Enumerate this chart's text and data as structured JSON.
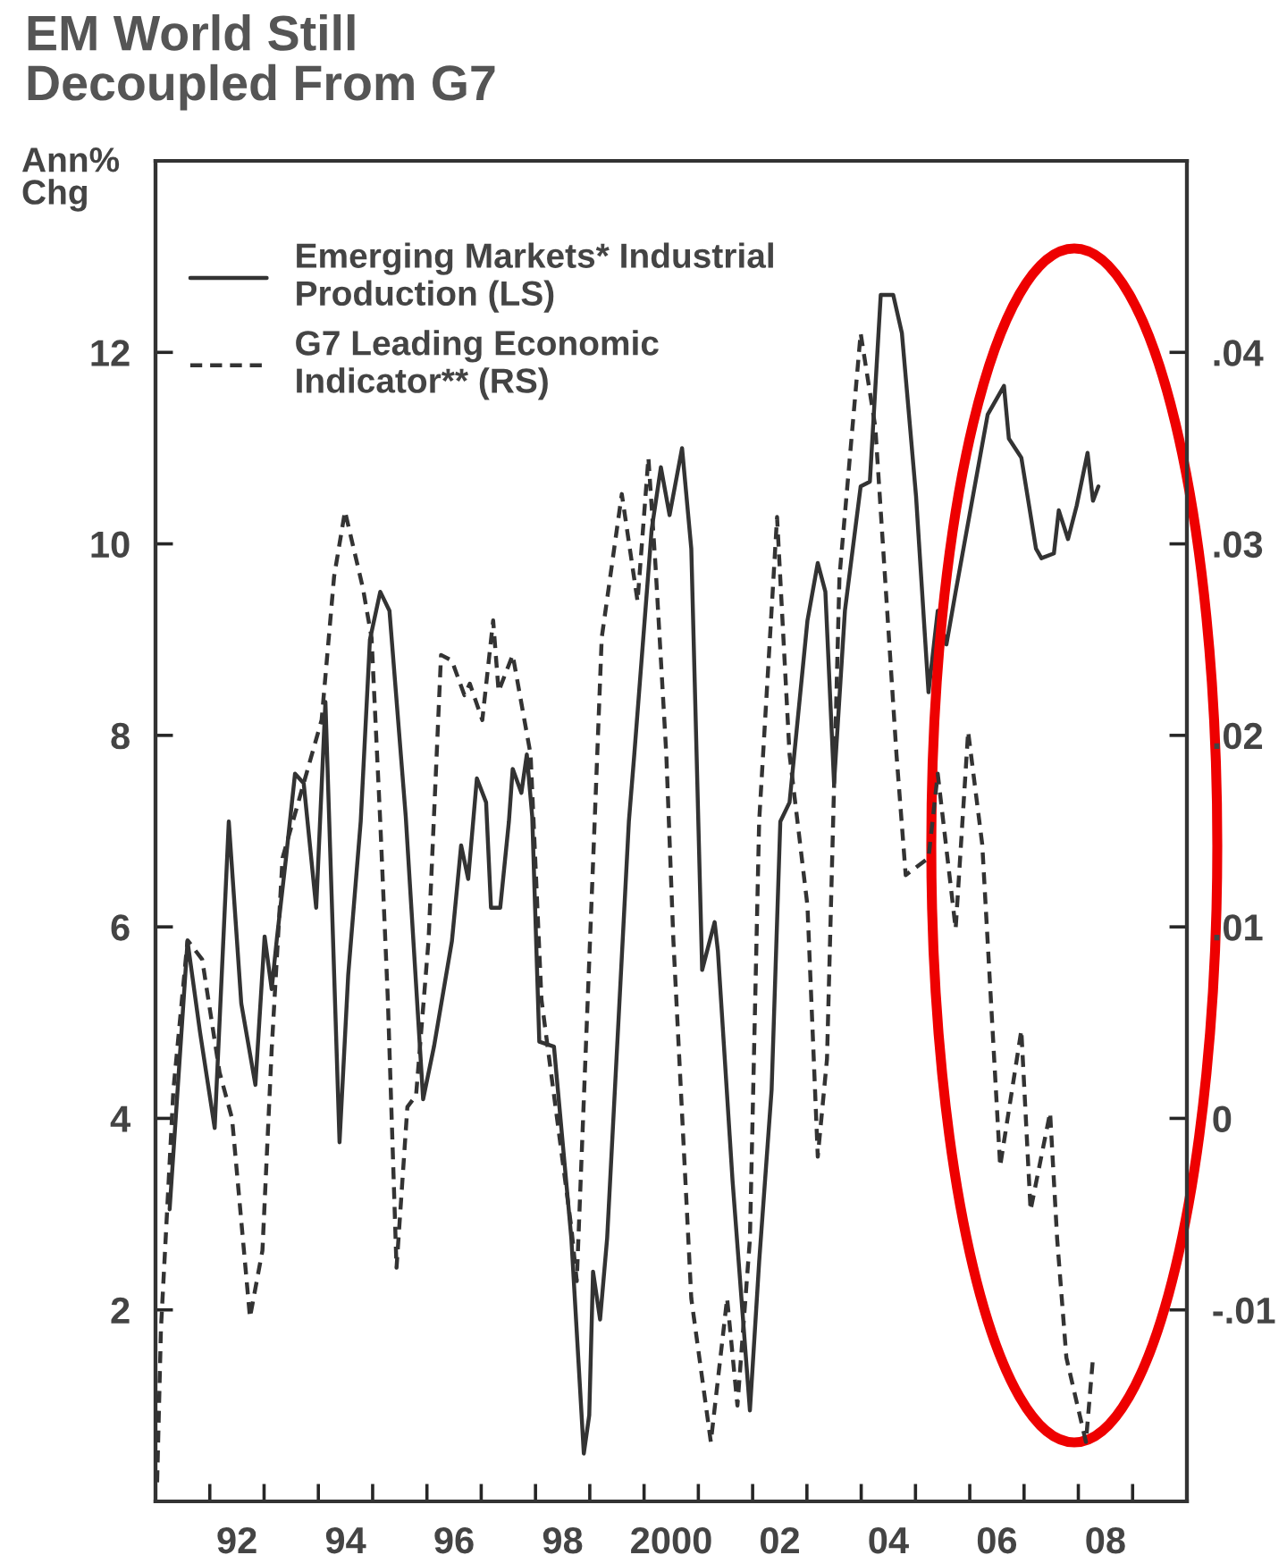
{
  "chart_data": {
    "type": "line",
    "title": "EM World Still\nDecoupled From G7",
    "ylabel": "Ann%\nChg",
    "xlim": [
      1990.5,
      2009.5
    ],
    "ylim": [
      0,
      14
    ],
    "y2lim": [
      -0.02,
      0.05
    ],
    "xticks": [
      {
        "value": 1991.5,
        "label": null
      },
      {
        "value": 1992,
        "label": "92"
      },
      {
        "value": 1992.5,
        "label": null
      },
      {
        "value": 1993.5,
        "label": null
      },
      {
        "value": 1994,
        "label": "94"
      },
      {
        "value": 1994.5,
        "label": null
      },
      {
        "value": 1995.5,
        "label": null
      },
      {
        "value": 1996,
        "label": "96"
      },
      {
        "value": 1996.5,
        "label": null
      },
      {
        "value": 1997.5,
        "label": null
      },
      {
        "value": 1998,
        "label": "98"
      },
      {
        "value": 1998.5,
        "label": null
      },
      {
        "value": 1999.5,
        "label": null
      },
      {
        "value": 2000,
        "label": "2000"
      },
      {
        "value": 2000.5,
        "label": null
      },
      {
        "value": 2001.5,
        "label": null
      },
      {
        "value": 2002,
        "label": "02"
      },
      {
        "value": 2002.5,
        "label": null
      },
      {
        "value": 2003.5,
        "label": null
      },
      {
        "value": 2004,
        "label": "04"
      },
      {
        "value": 2004.5,
        "label": null
      },
      {
        "value": 2005.5,
        "label": null
      },
      {
        "value": 2006,
        "label": "06"
      },
      {
        "value": 2006.5,
        "label": null
      },
      {
        "value": 2007.5,
        "label": null
      },
      {
        "value": 2008,
        "label": "08"
      },
      {
        "value": 2008.5,
        "label": null
      }
    ],
    "yticks": [
      2,
      4,
      6,
      8,
      10,
      12
    ],
    "y2ticks": [
      {
        "value": -0.01,
        "label": "-.01"
      },
      0,
      {
        "value": 0.01,
        "label": ".01"
      },
      {
        "value": 0.02,
        "label": ".02"
      },
      {
        "value": 0.03,
        "label": ".03"
      },
      {
        "value": 0.04,
        "label": ".04"
      }
    ],
    "grid": false,
    "legend": "top left",
    "marker": "none",
    "series": [
      {
        "name": "Emerging Markets* Industrial\nProduction (LS)",
        "color": "#333333",
        "line_style": "solid",
        "x": [
          1990.76,
          1991.09,
          1991.32,
          1991.59,
          1991.85,
          1992.08,
          1992.34,
          1992.51,
          1992.64,
          1992.74,
          1992.9,
          1993.07,
          1993.23,
          1993.46,
          1993.63,
          1993.89,
          1994.05,
          1994.28,
          1994.45,
          1994.64,
          1994.81,
          1995.11,
          1995.43,
          1995.63,
          1995.96,
          1996.13,
          1996.26,
          1996.42,
          1996.59,
          1996.68,
          1996.85,
          1997.01,
          1997.08,
          1997.24,
          1997.34,
          1997.44,
          1997.57,
          1997.84,
          1998.16,
          1998.39,
          1998.49,
          1998.56,
          1998.69,
          1998.82,
          1999.05,
          1999.22,
          1999.32,
          1999.64,
          1999.81,
          1999.97,
          2000.2,
          2000.37,
          2000.57,
          2000.8,
          2000.86,
          2001.13,
          2001.45,
          2001.62,
          2001.85,
          2002.01,
          2002.18,
          2002.51,
          2002.7,
          2002.84,
          2003.0,
          2003.2,
          2003.49,
          2003.66,
          2003.86,
          2004.09,
          2004.25,
          2004.51,
          2004.74,
          2004.91,
          2005.07,
          2005.24,
          2005.83,
          2006.13,
          2006.22,
          2006.45,
          2006.72,
          2006.82,
          2007.05,
          2007.14,
          2007.31,
          2007.47,
          2007.67,
          2007.77,
          2007.87
        ],
        "values": [
          3.05,
          5.85,
          4.9,
          3.9,
          7.1,
          5.2,
          4.35,
          5.9,
          5.35,
          5.9,
          6.7,
          7.6,
          7.5,
          6.2,
          8.35,
          3.75,
          5.5,
          7.1,
          9.0,
          9.5,
          9.3,
          7.15,
          4.2,
          4.75,
          5.85,
          6.85,
          6.5,
          7.55,
          7.3,
          6.2,
          6.2,
          7.1,
          7.65,
          7.4,
          7.8,
          7.15,
          4.8,
          4.75,
          2.75,
          0.5,
          0.9,
          2.4,
          1.9,
          2.75,
          5.25,
          7.1,
          7.8,
          10.15,
          10.8,
          10.3,
          11.0,
          9.95,
          5.55,
          6.05,
          5.75,
          3.35,
          0.95,
          2.5,
          4.3,
          7.1,
          7.3,
          9.2,
          9.8,
          9.5,
          7.5,
          9.3,
          10.6,
          10.65,
          12.6,
          12.6,
          12.2,
          10.5,
          8.45,
          9.3,
          8.95,
          9.5,
          11.35,
          11.65,
          11.1,
          10.9,
          9.95,
          9.85,
          9.9,
          10.35,
          10.05,
          10.4,
          10.95,
          10.45,
          10.6
        ]
      },
      {
        "name": "G7 Leading Economic\nIndicator** (RS)",
        "color": "#333333",
        "line_style": "dashed",
        "axis": "y2",
        "x": [
          1990.53,
          1990.6,
          1990.83,
          1991.09,
          1991.36,
          1991.68,
          1991.91,
          1992.24,
          1992.47,
          1992.64,
          1992.84,
          1993.56,
          1993.79,
          1993.99,
          1994.32,
          1994.48,
          1994.64,
          1994.78,
          1994.94,
          1995.14,
          1995.3,
          1995.53,
          1995.76,
          1995.96,
          1996.19,
          1996.29,
          1996.52,
          1996.72,
          1996.82,
          1997.08,
          1997.41,
          1997.61,
          1998.16,
          1998.26,
          1998.59,
          1998.72,
          1999.09,
          1999.38,
          1999.58,
          1999.71,
          1999.91,
          2000.04,
          2000.37,
          2000.73,
          2001.03,
          2001.22,
          2001.45,
          2001.62,
          2001.95,
          2002.18,
          2002.51,
          2002.7,
          2002.87,
          2003.1,
          2003.49,
          2003.76,
          2004.15,
          2004.32,
          2004.74,
          2004.91,
          2005.24,
          2005.47,
          2005.73,
          2006.06,
          2006.45,
          2006.62,
          2006.98,
          2007.11,
          2007.28,
          2007.64,
          2007.77
        ],
        "values": [
          -0.019,
          -0.011,
          0.0015,
          0.0093,
          0.0083,
          0.0024,
          0.0,
          -0.0104,
          -0.0069,
          0.0036,
          0.0136,
          0.0208,
          0.0283,
          0.0317,
          0.0277,
          0.0251,
          0.0155,
          0.0062,
          -0.0078,
          0.0006,
          0.0012,
          0.0093,
          0.0242,
          0.0239,
          0.0221,
          0.0227,
          0.0208,
          0.026,
          0.0223,
          0.0242,
          0.019,
          0.0062,
          -0.0057,
          -0.0085,
          0.0155,
          0.0251,
          0.0326,
          0.027,
          0.0345,
          0.0289,
          0.019,
          0.0093,
          -0.0094,
          -0.0169,
          -0.0094,
          -0.015,
          -0.0063,
          0.0155,
          0.0314,
          0.019,
          0.0111,
          -0.002,
          0.0031,
          0.0283,
          0.041,
          0.0361,
          0.019,
          0.0127,
          0.0136,
          0.018,
          0.0099,
          0.0202,
          0.0143,
          -0.0025,
          0.0046,
          -0.0048,
          0.0003,
          -0.0063,
          -0.0125,
          -0.0169,
          -0.0125
        ]
      }
    ]
  }
}
